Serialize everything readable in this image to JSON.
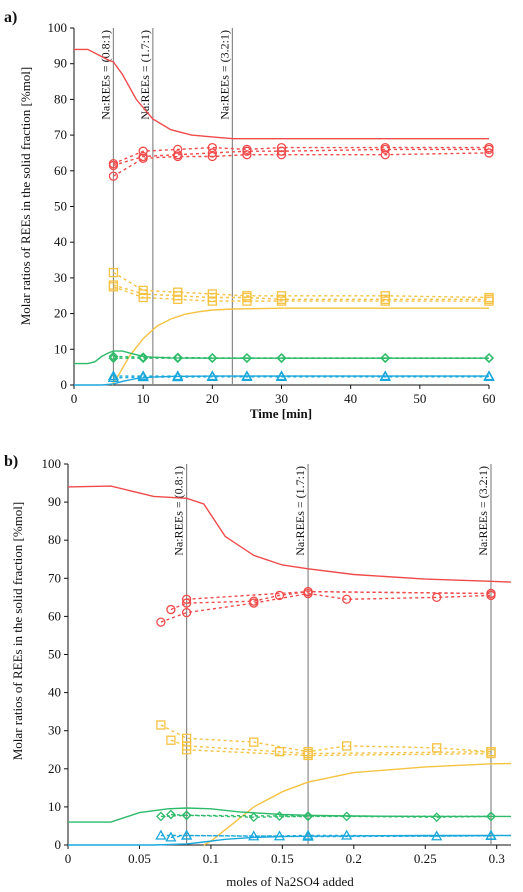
{
  "chart_data": [
    {
      "type": "line",
      "panel_label": "a)",
      "xlabel": "Time [min]",
      "ylabel": "Molar ratios of REEs in the solid fraction [%mol]",
      "xlim": [
        0,
        60
      ],
      "ylim": [
        0,
        100
      ],
      "xticks": [
        0,
        10,
        20,
        30,
        40,
        50,
        60
      ],
      "yticks": [
        0,
        10,
        20,
        30,
        40,
        50,
        60,
        70,
        80,
        90,
        100
      ],
      "vlines": [
        {
          "x": 5.7,
          "label": "Na:REEs = (0.8:1)"
        },
        {
          "x": 11.4,
          "label": "Na:REEs = (1.7:1)"
        },
        {
          "x": 22.9,
          "label": "Na:REEs = (3.2:1)"
        }
      ],
      "series": [
        {
          "color": "#f04a4a",
          "style": "solid",
          "marker": "none",
          "x": [
            0,
            1,
            2,
            3,
            4,
            5,
            5.7,
            7,
            9,
            11.4,
            14,
            17,
            20,
            23,
            30,
            40,
            50,
            60
          ],
          "y": [
            94,
            94,
            94,
            93,
            92,
            91,
            90.5,
            87,
            80,
            74.5,
            71.5,
            70,
            69.5,
            69,
            69,
            69,
            69,
            69
          ]
        },
        {
          "color": "#f04a4a",
          "style": "dashed",
          "marker": "circle",
          "x": [
            5.7,
            10,
            15,
            20,
            25,
            30,
            45,
            60
          ],
          "y": [
            58.5,
            63.5,
            64,
            64,
            64.5,
            64.5,
            64.5,
            65
          ]
        },
        {
          "color": "#f04a4a",
          "style": "dashed",
          "marker": "circle",
          "x": [
            5.7,
            10,
            15,
            20,
            25,
            30,
            45,
            60
          ],
          "y": [
            61.5,
            64,
            64.5,
            65,
            65.5,
            65.5,
            66,
            66
          ]
        },
        {
          "color": "#f04a4a",
          "style": "dashed",
          "marker": "circle",
          "x": [
            5.7,
            10,
            15,
            20,
            25,
            30,
            45,
            60
          ],
          "y": [
            62,
            65.5,
            66,
            66.5,
            66,
            66.5,
            66.5,
            66.5
          ]
        },
        {
          "color": "#f5c242",
          "style": "solid",
          "marker": "none",
          "x": [
            5.5,
            6.5,
            8,
            10,
            12,
            14,
            16,
            18,
            20,
            23,
            30,
            40,
            50,
            60
          ],
          "y": [
            0,
            3,
            8,
            13,
            16.5,
            18.5,
            19.8,
            20.5,
            21,
            21.3,
            21.5,
            21.5,
            21.5,
            21.5
          ]
        },
        {
          "color": "#f5c242",
          "style": "dashed",
          "marker": "square",
          "x": [
            5.7,
            10,
            15,
            20,
            25,
            30,
            45,
            60
          ],
          "y": [
            31.5,
            26.5,
            26,
            25.5,
            25,
            25,
            25,
            24.5
          ]
        },
        {
          "color": "#f5c242",
          "style": "dashed",
          "marker": "square",
          "x": [
            5.7,
            10,
            15,
            20,
            25,
            30,
            45,
            60
          ],
          "y": [
            28,
            25.5,
            25,
            24.5,
            24.5,
            24,
            24,
            24
          ]
        },
        {
          "color": "#f5c242",
          "style": "dashed",
          "marker": "square",
          "x": [
            5.7,
            10,
            15,
            20,
            25,
            30,
            45,
            60
          ],
          "y": [
            27.5,
            24.5,
            24,
            23.5,
            23.5,
            23.5,
            23.5,
            23.5
          ]
        },
        {
          "color": "#2dbb6a",
          "style": "solid",
          "marker": "none",
          "x": [
            0,
            2,
            3,
            4,
            5,
            5.7,
            7,
            8,
            9,
            10,
            11.4,
            14,
            20,
            30,
            40,
            50,
            60
          ],
          "y": [
            6,
            6,
            6.5,
            8,
            9,
            9.5,
            9.5,
            9,
            8.5,
            8,
            7.8,
            7.6,
            7.5,
            7.5,
            7.5,
            7.5,
            7.5
          ]
        },
        {
          "color": "#2dbb6a",
          "style": "dashed",
          "marker": "diamond",
          "x": [
            5.7,
            10,
            15,
            20,
            25,
            30,
            45,
            60
          ],
          "y": [
            7.5,
            7.5,
            7.5,
            7.5,
            7.5,
            7.5,
            7.5,
            7.5
          ]
        },
        {
          "color": "#2dbb6a",
          "style": "dashed",
          "marker": "diamond",
          "x": [
            5.7,
            10,
            15,
            20,
            25,
            30,
            45,
            60
          ],
          "y": [
            8,
            7.8,
            7.7,
            7.6,
            7.6,
            7.6,
            7.6,
            7.6
          ]
        },
        {
          "color": "#1aa8dc",
          "style": "solid",
          "marker": "none",
          "x": [
            0,
            2,
            4,
            5.7,
            7,
            9,
            11.4,
            14,
            20,
            30,
            40,
            50,
            60
          ],
          "y": [
            0,
            0,
            0,
            0.3,
            1,
            1.8,
            2.2,
            2.4,
            2.5,
            2.5,
            2.5,
            2.5,
            2.5
          ]
        },
        {
          "color": "#1aa8dc",
          "style": "dashed",
          "marker": "triangle",
          "x": [
            5.7,
            10,
            15,
            20,
            25,
            30,
            45,
            60
          ],
          "y": [
            2.5,
            2.5,
            2.5,
            2.5,
            2.5,
            2.5,
            2.5,
            2.5
          ]
        },
        {
          "color": "#1aa8dc",
          "style": "dashed",
          "marker": "triangle",
          "x": [
            5.7,
            10,
            15,
            20,
            25,
            30,
            45,
            60
          ],
          "y": [
            2,
            2.2,
            2.2,
            2.3,
            2.3,
            2.3,
            2.3,
            2.3
          ]
        }
      ]
    },
    {
      "type": "line",
      "panel_label": "b)",
      "xlabel": "moles of Na2SO4 added",
      "ylabel": "Molar ratios of REEs in the solid fraction [%mol]",
      "xlim": [
        0,
        0.31
      ],
      "ylim": [
        0,
        100
      ],
      "xticks": [
        0,
        0.05,
        0.1,
        0.15,
        0.2,
        0.25,
        0.3
      ],
      "xticklabels": [
        "0",
        "0.05",
        "0.1",
        "0.15",
        "0.2",
        "0.25",
        "0.3"
      ],
      "yticks": [
        0,
        10,
        20,
        30,
        40,
        50,
        60,
        70,
        80,
        90,
        100
      ],
      "vlines": [
        {
          "x": 0.083,
          "label": "Na:REEs = (0.8:1)"
        },
        {
          "x": 0.168,
          "label": "Na:REEs = (1.7:1)"
        },
        {
          "x": 0.296,
          "label": "Na:REEs = (3.2:1)"
        }
      ],
      "series": [
        {
          "color": "#f04a4a",
          "style": "solid",
          "marker": "none",
          "x": [
            0,
            0.03,
            0.06,
            0.083,
            0.095,
            0.11,
            0.13,
            0.15,
            0.168,
            0.2,
            0.25,
            0.296,
            0.31
          ],
          "y": [
            94,
            94.2,
            91.5,
            91,
            89.5,
            81,
            76,
            73.5,
            72.5,
            71,
            69.8,
            69.2,
            69
          ]
        },
        {
          "color": "#f04a4a",
          "style": "dashed",
          "marker": "circle",
          "x": [
            0.065,
            0.083,
            0.13,
            0.168,
            0.195,
            0.258,
            0.296
          ],
          "y": [
            58.5,
            61,
            63.5,
            66,
            64.5,
            65,
            65.5
          ]
        },
        {
          "color": "#f04a4a",
          "style": "dashed",
          "marker": "circle",
          "x": [
            0.072,
            0.083,
            0.13,
            0.148,
            0.168,
            0.296
          ],
          "y": [
            61.8,
            63.5,
            64,
            65.5,
            66.5,
            66
          ]
        },
        {
          "color": "#f04a4a",
          "style": "dashed",
          "marker": "circle",
          "x": [
            0.083,
            0.168,
            0.296
          ],
          "y": [
            64.5,
            66.5,
            66
          ]
        },
        {
          "color": "#f5c242",
          "style": "solid",
          "marker": "none",
          "x": [
            0.095,
            0.1,
            0.11,
            0.13,
            0.15,
            0.168,
            0.2,
            0.25,
            0.296,
            0.31
          ],
          "y": [
            0,
            1,
            4,
            10,
            14,
            16.5,
            19,
            20.5,
            21.3,
            21.4
          ]
        },
        {
          "color": "#f5c242",
          "style": "dashed",
          "marker": "square",
          "x": [
            0.065,
            0.083,
            0.13,
            0.168,
            0.195,
            0.258,
            0.296
          ],
          "y": [
            31.5,
            28,
            27,
            24.5,
            26,
            25.5,
            24.5
          ]
        },
        {
          "color": "#f5c242",
          "style": "dashed",
          "marker": "square",
          "x": [
            0.072,
            0.083,
            0.148,
            0.168,
            0.296
          ],
          "y": [
            27.5,
            26,
            24.5,
            24,
            24.5
          ]
        },
        {
          "color": "#f5c242",
          "style": "dashed",
          "marker": "square",
          "x": [
            0.083,
            0.168,
            0.296
          ],
          "y": [
            25,
            23.5,
            24
          ]
        },
        {
          "color": "#2dbb6a",
          "style": "solid",
          "marker": "none",
          "x": [
            0,
            0.03,
            0.05,
            0.07,
            0.083,
            0.1,
            0.12,
            0.15,
            0.168,
            0.2,
            0.25,
            0.296,
            0.31
          ],
          "y": [
            6,
            6,
            8.5,
            9.5,
            9.7,
            9.5,
            8.7,
            8,
            7.8,
            7.6,
            7.5,
            7.5,
            7.5
          ]
        },
        {
          "color": "#2dbb6a",
          "style": "dashed",
          "marker": "diamond",
          "x": [
            0.065,
            0.083,
            0.13,
            0.168,
            0.195,
            0.258,
            0.296
          ],
          "y": [
            7.5,
            7.8,
            7.3,
            7.5,
            7.5,
            7.3,
            7.5
          ]
        },
        {
          "color": "#2dbb6a",
          "style": "dashed",
          "marker": "diamond",
          "x": [
            0.072,
            0.083,
            0.148,
            0.168,
            0.296
          ],
          "y": [
            8,
            7.8,
            7.6,
            7.6,
            7.5
          ]
        },
        {
          "color": "#1aa8dc",
          "style": "solid",
          "marker": "none",
          "x": [
            0,
            0.06,
            0.083,
            0.095,
            0.11,
            0.13,
            0.15,
            0.168,
            0.2,
            0.25,
            0.296,
            0.31
          ],
          "y": [
            0,
            0,
            0.3,
            0.8,
            1.5,
            2,
            2.2,
            2.3,
            2.4,
            2.5,
            2.5,
            2.5
          ]
        },
        {
          "color": "#1aa8dc",
          "style": "dashed",
          "marker": "triangle",
          "x": [
            0.065,
            0.083,
            0.13,
            0.168,
            0.195,
            0.258,
            0.296
          ],
          "y": [
            2.5,
            2.5,
            2.3,
            2.5,
            2.5,
            2.3,
            2.5
          ]
        },
        {
          "color": "#1aa8dc",
          "style": "dashed",
          "marker": "triangle",
          "x": [
            0.072,
            0.083,
            0.148,
            0.168,
            0.296
          ],
          "y": [
            2,
            2.5,
            2.3,
            2.2,
            2.4
          ]
        }
      ]
    }
  ]
}
